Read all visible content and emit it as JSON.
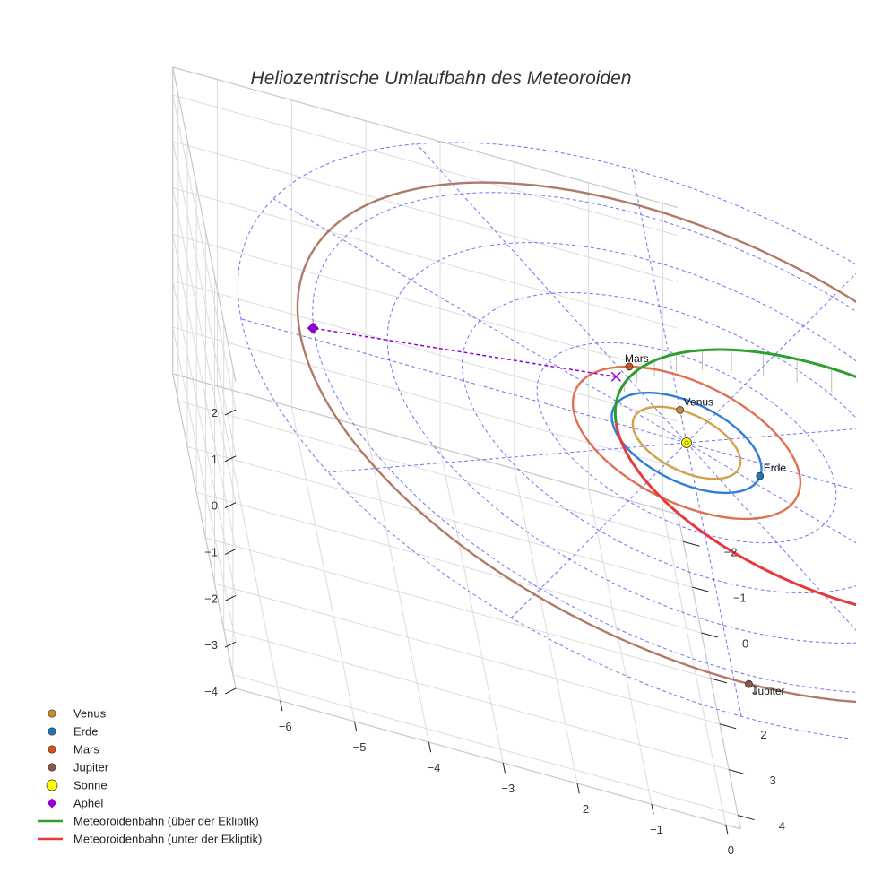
{
  "chart_data": {
    "type": "scatter3d",
    "title": "Heliozentrische Umlaufbahn des Meteoroiden",
    "axes": {
      "x": {
        "ticks": [
          -6,
          -5,
          -4,
          -3,
          -2,
          -1,
          0
        ],
        "range": [
          -6.6,
          0.2
        ]
      },
      "y": {
        "ticks": [
          -2,
          -1,
          0,
          1,
          2,
          3,
          4
        ],
        "range": [
          -2.6,
          4.3
        ]
      },
      "z": {
        "ticks": [
          -4,
          -3,
          -2,
          -1,
          0,
          1,
          2
        ],
        "range": [
          -4,
          2.6
        ]
      },
      "grid": true
    },
    "planets": [
      {
        "name": "Venus",
        "label": "Venus",
        "orbit_radius": 0.72,
        "x": 0.0,
        "y": -0.72,
        "z": 0,
        "color": "#c8902c",
        "orbit_color": "#d4a04a"
      },
      {
        "name": "Erde",
        "label": "Erde",
        "orbit_radius": 1.0,
        "x": 0.95,
        "y": 0.3,
        "z": 0,
        "color": "#1f77b4",
        "orbit_color": "#2f7ed8"
      },
      {
        "name": "Mars",
        "label": "Mars",
        "orbit_radius": 1.52,
        "x": -0.6,
        "y": -1.4,
        "z": 0,
        "color": "#d2521d",
        "orbit_color": "#e07050"
      },
      {
        "name": "Jupiter",
        "label": "Jupiter",
        "orbit_radius": 5.2,
        "x": 0.2,
        "y": 5.2,
        "z": 0,
        "color": "#8c564b",
        "orbit_color": "#b07a68"
      }
    ],
    "sun": {
      "name": "Sonne",
      "x": 0,
      "y": 0,
      "z": 0,
      "color": "#ffff00"
    },
    "aphel": {
      "name": "Aphel",
      "x": -5.0,
      "y": -0.25,
      "z": 0,
      "color": "#9400d3"
    },
    "meteoroid_orbit": {
      "perihelion": 0.95,
      "aphelion": 5.0,
      "projection_color": "#9400d3",
      "above_name": "Meteoroidenbahn (über der Ekliptik)",
      "above_color": "#2ca02c",
      "below_name": "Meteoroidenbahn (unter der Ekliptik)",
      "below_color": "#e8393a"
    },
    "ecliptic_grid": {
      "radii": [
        1,
        2,
        3,
        4,
        5,
        6
      ],
      "spokes": 12,
      "color": "#5b5bf0"
    },
    "legend": {
      "position": "bottom-left",
      "items": [
        {
          "label": "Venus",
          "kind": "marker",
          "color": "#c8902c"
        },
        {
          "label": "Erde",
          "kind": "marker",
          "color": "#1f77b4"
        },
        {
          "label": "Mars",
          "kind": "marker",
          "color": "#d2521d"
        },
        {
          "label": "Jupiter",
          "kind": "marker",
          "color": "#8c564b"
        },
        {
          "label": "Sonne",
          "kind": "sun",
          "color": "#ffff00"
        },
        {
          "label": "Aphel",
          "kind": "diamond",
          "color": "#9400d3"
        },
        {
          "label": "Meteoroidenbahn (über der Ekliptik)",
          "kind": "line",
          "color": "#2ca02c"
        },
        {
          "label": "Meteoroidenbahn (unter der Ekliptik)",
          "kind": "line",
          "color": "#e8393a"
        }
      ]
    }
  }
}
